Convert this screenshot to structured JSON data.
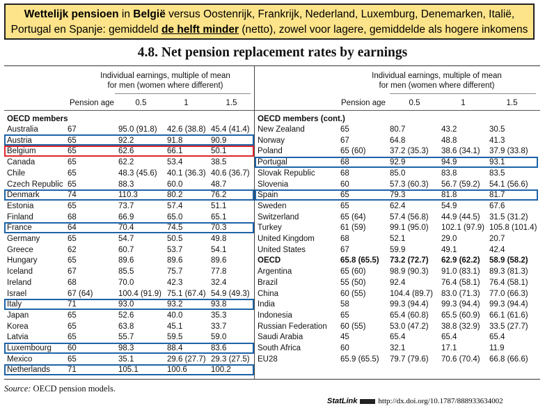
{
  "banner": {
    "b1": "Wettelijk pensioen",
    "t1": " in ",
    "b2": "België",
    "t2": " versus Oostenrijk, Frankrijk, Nederland, Luxemburg, Denemarken, Italië,",
    "t3": "Portugal en Spanje: gemiddeld ",
    "u1": "de helft minder",
    "t4": " (netto), zowel voor lagere, gemiddelde als hogere inkomens"
  },
  "title": "4.8.  Net pension replacement rates by earnings",
  "header": {
    "group_line1": "Individual earnings, multiple of mean",
    "group_line2": "for men (women where different)",
    "col_age": "Pension age",
    "col_05": "0.5",
    "col_1": "1",
    "col_15": "1.5"
  },
  "left_section": "OECD members",
  "right_section": "OECD members (cont.)",
  "left_rows": [
    [
      "Australia",
      "67",
      "95.0 (91.8)",
      "42.6 (38.8)",
      "45.4 (41.4)"
    ],
    [
      "Austria",
      "65",
      "92.2",
      "91.8",
      "90.9"
    ],
    [
      "Belgium",
      "65",
      "62.6",
      "66.1",
      "50.1"
    ],
    [
      "Canada",
      "65",
      "62.2",
      "53.4",
      "38.5"
    ],
    [
      "Chile",
      "65",
      "48.3 (45.6)",
      "40.1 (36.3)",
      "40.6 (36.7)"
    ],
    [
      "Czech Republic",
      "65",
      "88.3",
      "60.0",
      "48.7"
    ],
    [
      "Denmark",
      "74",
      "110.3",
      "80.2",
      "76.2"
    ],
    [
      "Estonia",
      "65",
      "73.7",
      "57.4",
      "51.1"
    ],
    [
      "Finland",
      "68",
      "66.9",
      "65.0",
      "65.1"
    ],
    [
      "France",
      "64",
      "70.4",
      "74.5",
      "70.3"
    ],
    [
      "Germany",
      "65",
      "54.7",
      "50.5",
      "49.8"
    ],
    [
      "Greece",
      "62",
      "60.7",
      "53.7",
      "54.1"
    ],
    [
      "Hungary",
      "65",
      "89.6",
      "89.6",
      "89.6"
    ],
    [
      "Iceland",
      "67",
      "85.5",
      "75.7",
      "77.8"
    ],
    [
      "Ireland",
      "68",
      "70.0",
      "42.3",
      "32.4"
    ],
    [
      "Israel",
      "67 (64)",
      "100.4 (91.9)",
      "75.1 (67.4)",
      "54.9 (49.3)"
    ],
    [
      "Italy",
      "71",
      "93.0",
      "93.2",
      "93.8"
    ],
    [
      "Japan",
      "65",
      "52.6",
      "40.0",
      "35.3"
    ],
    [
      "Korea",
      "65",
      "63.8",
      "45.1",
      "33.7"
    ],
    [
      "Latvia",
      "65",
      "55.7",
      "59.5",
      "59.0"
    ],
    [
      "Luxembourg",
      "60",
      "98.3",
      "88.4",
      "83.6"
    ],
    [
      "Mexico",
      "65",
      "35.1",
      "29.6 (27.7)",
      "29.3 (27.5)"
    ],
    [
      "Netherlands",
      "71",
      "105.1",
      "100.6",
      "100.2"
    ]
  ],
  "right_rows": [
    [
      "New Zealand",
      "65",
      "80.7",
      "43.2",
      "30.5"
    ],
    [
      "Norway",
      "67",
      "64.8",
      "48.8",
      "41.3"
    ],
    [
      "Poland",
      "65 (60)",
      "37.2 (35.3)",
      "38.6 (34.1)",
      "37.9 (33.8)"
    ],
    [
      "Portugal",
      "68",
      "92.9",
      "94.9",
      "93.1"
    ],
    [
      "Slovak Republic",
      "68",
      "85.0",
      "83.8",
      "83.5"
    ],
    [
      "Slovenia",
      "60",
      "57.3 (60.3)",
      "56.7 (59.2)",
      "54.1 (56.6)"
    ],
    [
      "Spain",
      "65",
      "79.3",
      "81.8",
      "81.7"
    ],
    [
      "Sweden",
      "65",
      "62.4",
      "54.9",
      "67.6"
    ],
    [
      "Switzerland",
      "65 (64)",
      "57.4 (56.8)",
      "44.9 (44.5)",
      "31.5 (31.2)"
    ],
    [
      "Turkey",
      "61 (59)",
      "99.1 (95.0)",
      "102.1 (97.9)",
      "105.8 (101.4)"
    ],
    [
      "United Kingdom",
      "68",
      "52.1",
      "29.0",
      "20.7"
    ],
    [
      "United States",
      "67",
      "59.9",
      "49.1",
      "42.4"
    ],
    [
      "OECD",
      "65.8 (65.5)",
      "73.2 (72.7)",
      "62.9 (62.2)",
      "58.9 (58.2)"
    ],
    [
      "Argentina",
      "65 (60)",
      "98.9 (90.3)",
      "91.0 (83.1)",
      "89.3 (81.3)"
    ],
    [
      "Brazil",
      "55 (50)",
      "92.4",
      "76.4 (58.1)",
      "76.4 (58.1)"
    ],
    [
      "China",
      "60 (55)",
      "104.4 (89.7)",
      "83.0 (71.3)",
      "77.0 (66.3)"
    ],
    [
      "India",
      "58",
      "99.3 (94.4)",
      "99.3 (94.4)",
      "99.3 (94.4)"
    ],
    [
      "Indonesia",
      "65",
      "65.4 (60.8)",
      "65.5 (60.9)",
      "66.1 (61.6)"
    ],
    [
      "Russian Federation",
      "60 (55)",
      "53.0 (47.2)",
      "38.8 (32.9)",
      "33.5 (27.7)"
    ],
    [
      "Saudi Arabia",
      "45",
      "65.4",
      "65.4",
      "65.4"
    ],
    [
      "South Africa",
      "60",
      "32.1",
      "17.1",
      "11.9"
    ],
    [
      "EU28",
      "65.9 (65.5)",
      "79.7 (79.6)",
      "70.6 (70.4)",
      "66.8 (66.6)"
    ]
  ],
  "source_label": "Source:",
  "source_text": "OECD pension models.",
  "statlink_label": "StatLink",
  "statlink_url": "http://dx.doi.org/10.1787/888933634002",
  "colors": {
    "banner_bg": "#fde48a",
    "highlight_blue": "#1c63a8",
    "highlight_red": "#e0252a"
  }
}
